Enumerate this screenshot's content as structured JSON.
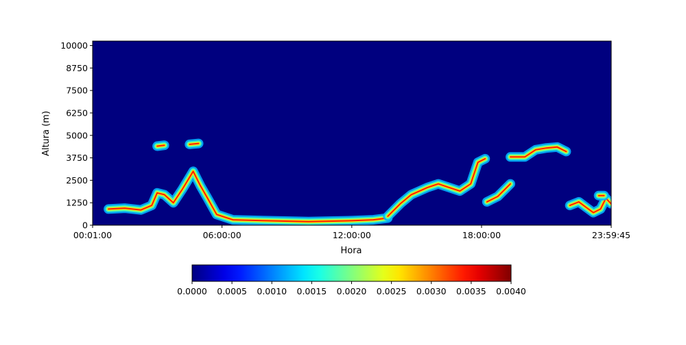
{
  "chart_data": {
    "type": "heatmap",
    "title": "",
    "xlabel": "Hora",
    "ylabel": "Altura (m)",
    "xlim": [
      "00:01:00",
      "23:59:45"
    ],
    "xticks": [
      "00:01:00",
      "06:00:00",
      "12:00:00",
      "18:00:00",
      "23:59:45"
    ],
    "ylim": [
      0,
      10250
    ],
    "yticks": [
      0,
      1250,
      2500,
      3750,
      5000,
      6250,
      7500,
      8750,
      10000
    ],
    "ytick_labels": [
      "0",
      "1250",
      "2500",
      "3750",
      "5000",
      "6250",
      "7500",
      "8750",
      "10000"
    ],
    "colormap": "jet",
    "background_color": "#00007f",
    "colorbar": {
      "vmin": 0,
      "vmax": 0.004,
      "ticks": [
        0,
        0.0005,
        0.001,
        0.0015,
        0.002,
        0.0025,
        0.003,
        0.0035,
        0.004
      ],
      "tick_labels": [
        "0.0000",
        "0.0005",
        "0.0010",
        "0.0015",
        "0.0020",
        "0.0025",
        "0.0030",
        "0.0035",
        "0.0040"
      ],
      "position": "bottom"
    },
    "layers": [
      {
        "name": "layer-morning",
        "points": [
          [
            "00:45:00",
            900
          ],
          [
            "01:30:00",
            950
          ],
          [
            "02:15:00",
            850
          ],
          [
            "02:45:00",
            1100
          ],
          [
            "03:00:00",
            1800
          ],
          [
            "03:20:00",
            1700
          ],
          [
            "03:45:00",
            1250
          ],
          [
            "04:10:00",
            2000
          ],
          [
            "04:40:00",
            3000
          ],
          [
            "05:00:00",
            2200
          ],
          [
            "05:20:00",
            1500
          ],
          [
            "05:45:00",
            600
          ],
          [
            "06:30:00",
            300
          ],
          [
            "08:00:00",
            250
          ],
          [
            "10:00:00",
            200
          ],
          [
            "12:00:00",
            250
          ],
          [
            "13:00:00",
            300
          ],
          [
            "13:40:00",
            400
          ]
        ]
      },
      {
        "name": "layer-afternoon",
        "points": [
          [
            "13:40:00",
            500
          ],
          [
            "14:15:00",
            1200
          ],
          [
            "14:45:00",
            1700
          ],
          [
            "15:30:00",
            2100
          ],
          [
            "16:00:00",
            2300
          ],
          [
            "16:30:00",
            2100
          ],
          [
            "17:00:00",
            1900
          ],
          [
            "17:30:00",
            2300
          ],
          [
            "17:50:00",
            3500
          ],
          [
            "18:10:00",
            3700
          ]
        ]
      },
      {
        "name": "layer-evening",
        "points": [
          [
            "18:15:00",
            1300
          ],
          [
            "18:45:00",
            1600
          ],
          [
            "19:05:00",
            2000
          ],
          [
            "19:20:00",
            2300
          ]
        ]
      },
      {
        "name": "layer-upper",
        "points": [
          [
            "19:20:00",
            3800
          ],
          [
            "20:00:00",
            3800
          ],
          [
            "20:30:00",
            4200
          ],
          [
            "21:00:00",
            4300
          ],
          [
            "21:30:00",
            4350
          ],
          [
            "21:55:00",
            4100
          ]
        ]
      },
      {
        "name": "layer-night",
        "points": [
          [
            "22:05:00",
            1100
          ],
          [
            "22:30:00",
            1300
          ],
          [
            "22:50:00",
            1000
          ],
          [
            "23:10:00",
            700
          ],
          [
            "23:30:00",
            900
          ],
          [
            "23:45:00",
            1500
          ],
          [
            "23:59:00",
            1200
          ]
        ]
      },
      {
        "name": "patch-1",
        "points": [
          [
            "03:00:00",
            4400
          ],
          [
            "03:20:00",
            4450
          ]
        ]
      },
      {
        "name": "patch-2",
        "points": [
          [
            "04:30:00",
            4500
          ],
          [
            "04:55:00",
            4550
          ]
        ]
      },
      {
        "name": "patch-3",
        "points": [
          [
            "23:25:00",
            1650
          ],
          [
            "23:40:00",
            1650
          ]
        ]
      }
    ]
  }
}
